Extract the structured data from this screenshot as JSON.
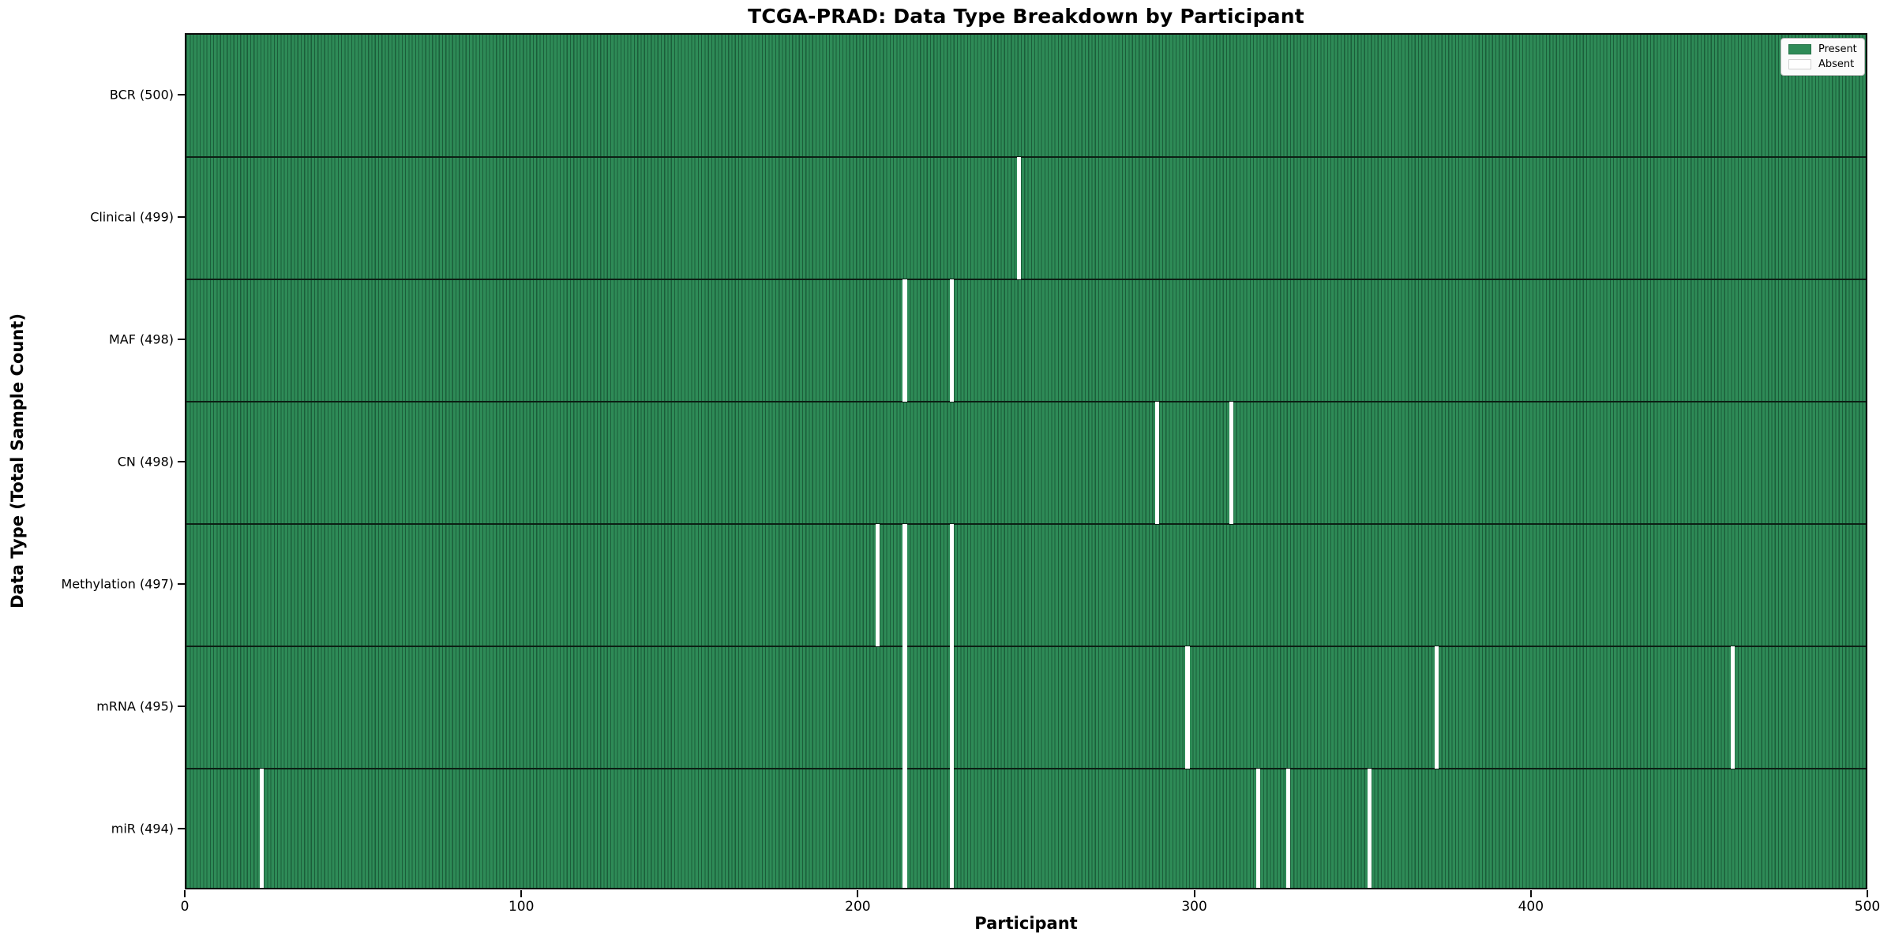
{
  "chart_data": {
    "type": "heatmap",
    "title": "TCGA-PRAD: Data Type Breakdown by Participant",
    "xlabel": "Participant",
    "ylabel": "Data Type (Total Sample Count)",
    "x_range": [
      0,
      500
    ],
    "x_ticks": [
      0,
      100,
      200,
      300,
      400,
      500
    ],
    "n_participants": 500,
    "grid": false,
    "legend_position": "upper-right",
    "legend": [
      {
        "label": "Present",
        "color": "#2e8b57"
      },
      {
        "label": "Absent",
        "color": "#ffffff"
      }
    ],
    "colors": {
      "present": "#2e8b57",
      "absent": "#ffffff",
      "bar_edge": "#1b5e3a",
      "row_separator": "#0c1f14",
      "legend_bg": "#fbfbfb",
      "legend_border": "#b9b9b9"
    },
    "rows": [
      {
        "label": "BCR (500)",
        "total": 500,
        "absent_at": []
      },
      {
        "label": "Clinical (499)",
        "total": 499,
        "absent_at": [
          247
        ]
      },
      {
        "label": "MAF (498)",
        "total": 498,
        "absent_at": [
          213,
          227
        ]
      },
      {
        "label": "CN (498)",
        "total": 498,
        "absent_at": [
          288,
          310
        ]
      },
      {
        "label": "Methylation (497)",
        "total": 497,
        "absent_at": [
          205,
          213,
          227
        ]
      },
      {
        "label": "mRNA (495)",
        "total": 495,
        "absent_at": [
          213,
          227,
          297,
          371,
          459
        ]
      },
      {
        "label": "miR (494)",
        "total": 494,
        "absent_at": [
          22,
          213,
          227,
          318,
          327,
          351
        ]
      }
    ]
  }
}
